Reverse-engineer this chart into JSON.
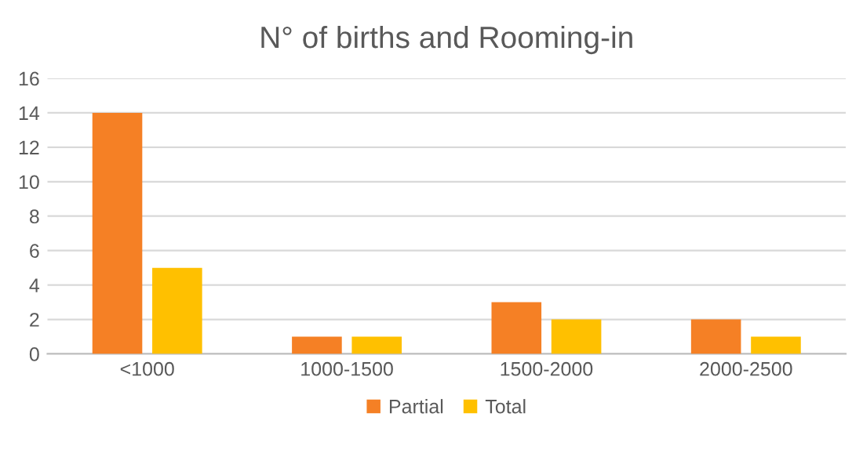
{
  "chart_data": {
    "type": "bar",
    "title": "N° of births and Rooming-in",
    "categories": [
      "<1000",
      "1000-1500",
      "1500-2000",
      "2000-2500"
    ],
    "series": [
      {
        "name": "Partial",
        "color": "#f58025",
        "values": [
          14,
          1,
          3,
          2
        ]
      },
      {
        "name": "Total",
        "color": "#ffc000",
        "values": [
          5,
          1,
          2,
          1
        ]
      }
    ],
    "ylim": [
      0,
      16
    ],
    "yticks": [
      0,
      2,
      4,
      6,
      8,
      10,
      12,
      14,
      16
    ],
    "grid": "y",
    "legend": "bottom"
  }
}
